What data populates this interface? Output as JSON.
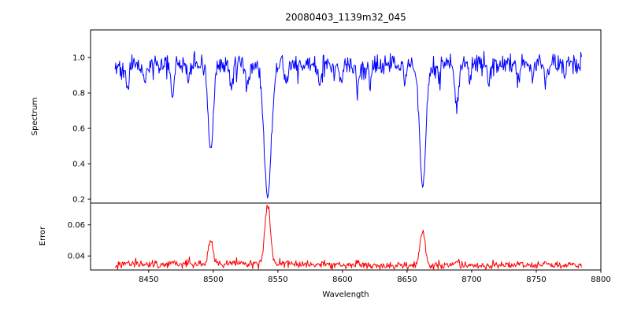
{
  "chart_data": {
    "type": "line",
    "title": "20080403_1139m32_045",
    "xlabel": "Wavelength",
    "xlim": [
      8405,
      8800
    ],
    "x_ticks": {
      "values": [
        8450,
        8500,
        8550,
        8600,
        8650,
        8700,
        8750,
        8800
      ],
      "labels": [
        "8450",
        "8500",
        "8550",
        "8600",
        "8650",
        "8700",
        "8750",
        "8800"
      ]
    },
    "grid": false,
    "legend": "none",
    "panels": [
      {
        "name": "spectrum",
        "ylabel": "Spectrum",
        "color": "#0000ff",
        "ylim": [
          0.178,
          1.156
        ],
        "y_ticks": {
          "values": [
            0.2,
            0.4,
            0.6,
            0.8,
            1.0
          ],
          "labels": [
            "0.2",
            "0.4",
            "0.6",
            "0.8",
            "1.0"
          ]
        },
        "series": {
          "x_start": 8424,
          "x_end": 8785,
          "x_step": 0.5,
          "continuum": 0.96,
          "noise_sigma": 0.028,
          "spike_prob": 0.05,
          "spike_max": 0.1,
          "absorption_lines": [
            {
              "center": 8498.0,
              "depth": 0.5,
              "width": 2.0
            },
            {
              "center": 8542.1,
              "depth": 0.77,
              "width": 2.8
            },
            {
              "center": 8662.1,
              "depth": 0.72,
              "width": 2.4
            },
            {
              "center": 8433.5,
              "depth": 0.15,
              "width": 1.2
            },
            {
              "center": 8446.8,
              "depth": 0.12,
              "width": 1.1
            },
            {
              "center": 8468.4,
              "depth": 0.16,
              "width": 1.3
            },
            {
              "center": 8480.3,
              "depth": 0.09,
              "width": 1.0
            },
            {
              "center": 8514.1,
              "depth": 0.13,
              "width": 1.1
            },
            {
              "center": 8526.7,
              "depth": 0.12,
              "width": 1.1
            },
            {
              "center": 8556.8,
              "depth": 0.09,
              "width": 1.0
            },
            {
              "center": 8582.3,
              "depth": 0.1,
              "width": 1.1
            },
            {
              "center": 8598.8,
              "depth": 0.11,
              "width": 1.1
            },
            {
              "center": 8611.8,
              "depth": 0.13,
              "width": 1.2
            },
            {
              "center": 8621.6,
              "depth": 0.09,
              "width": 1.0
            },
            {
              "center": 8648.5,
              "depth": 0.11,
              "width": 1.1
            },
            {
              "center": 8674.7,
              "depth": 0.09,
              "width": 1.0
            },
            {
              "center": 8688.6,
              "depth": 0.24,
              "width": 1.5
            },
            {
              "center": 8699.0,
              "depth": 0.08,
              "width": 1.0
            },
            {
              "center": 8713.2,
              "depth": 0.1,
              "width": 1.1
            },
            {
              "center": 8736.0,
              "depth": 0.11,
              "width": 1.1
            },
            {
              "center": 8747.3,
              "depth": 0.09,
              "width": 1.0
            },
            {
              "center": 8757.1,
              "depth": 0.1,
              "width": 1.0
            },
            {
              "center": 8772.0,
              "depth": 0.09,
              "width": 1.0
            }
          ]
        }
      },
      {
        "name": "error",
        "ylabel": "Error",
        "color": "#ff0000",
        "ylim": [
          0.031,
          0.074
        ],
        "y_ticks": {
          "values": [
            0.04,
            0.06
          ],
          "labels": [
            "0.04",
            "0.06"
          ]
        },
        "series": {
          "x_start": 8424,
          "x_end": 8785,
          "x_step": 0.5,
          "baseline": 0.0342,
          "wiggle_amp": 0.0006,
          "wiggle_period": 55,
          "noise_sigma": 0.0011,
          "spike_prob": 0.05,
          "spike_max": 0.003,
          "peaks": [
            {
              "center": 8498.0,
              "height": 0.0145,
              "width": 1.8
            },
            {
              "center": 8542.1,
              "height": 0.0375,
              "width": 2.2
            },
            {
              "center": 8662.1,
              "height": 0.0225,
              "width": 2.0
            },
            {
              "center": 8688.6,
              "height": 0.004,
              "width": 1.4
            },
            {
              "center": 8433.5,
              "height": 0.0018,
              "width": 1.2
            },
            {
              "center": 8468.4,
              "height": 0.0022,
              "width": 1.2
            },
            {
              "center": 8514.1,
              "height": 0.0015,
              "width": 1.1
            },
            {
              "center": 8611.8,
              "height": 0.0015,
              "width": 1.1
            },
            {
              "center": 8736.0,
              "height": 0.0022,
              "width": 1.2
            },
            {
              "center": 8757.1,
              "height": 0.0018,
              "width": 1.0
            }
          ]
        }
      }
    ]
  }
}
